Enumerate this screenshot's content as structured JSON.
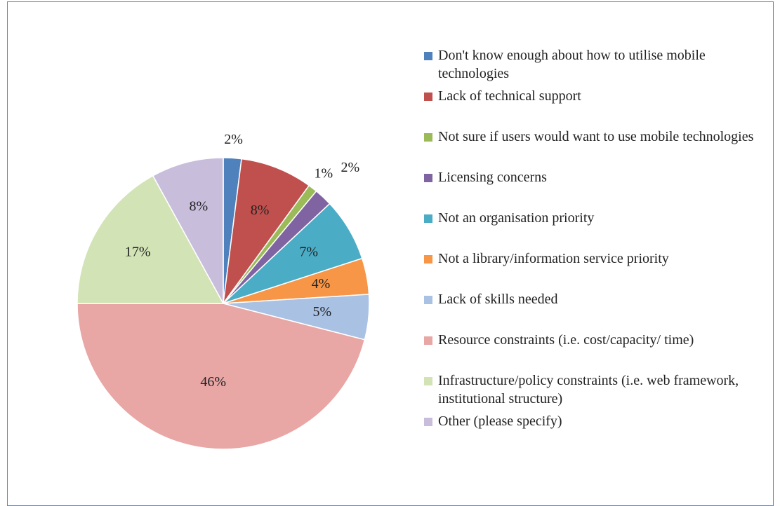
{
  "chart_data": {
    "type": "pie",
    "categories": [
      "Don't know enough about how to utilise mobile technologies",
      "Lack of technical support",
      "Not sure if users would want to use mobile technologies",
      "Licensing concerns",
      "Not an organisation priority",
      "Not a library/information service priority",
      "Lack of skills needed",
      "Resource constraints (i.e. cost/capacity/ time)",
      "Infrastructure/policy constraints (i.e. web framework, institutional structure)",
      "Other (please specify)"
    ],
    "values": [
      2,
      8,
      1,
      2,
      7,
      4,
      5,
      46,
      17,
      8
    ],
    "value_labels": [
      "2%",
      "8%",
      "1%",
      "2%",
      "7%",
      "4%",
      "5%",
      "46%",
      "17%",
      "8%"
    ],
    "colors": [
      "#4f81bd",
      "#c0504d",
      "#9bbb59",
      "#8064a2",
      "#4bacc6",
      "#f79646",
      "#a9c1e3",
      "#e8a6a5",
      "#d2e3b5",
      "#c9bddc"
    ]
  }
}
